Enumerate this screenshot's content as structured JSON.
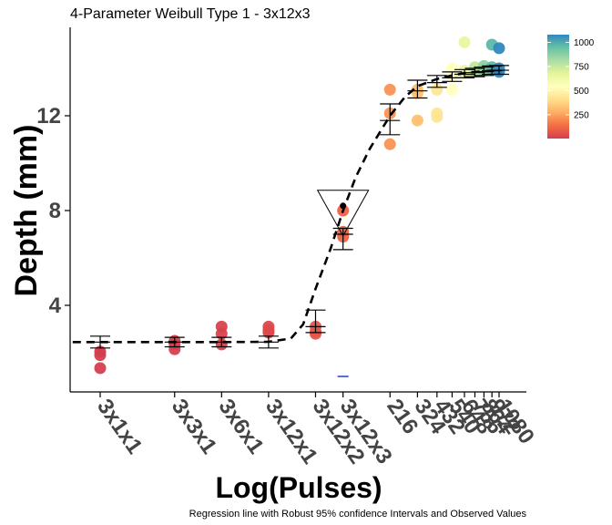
{
  "chart_data": {
    "type": "scatter",
    "title": "4-Parameter Weibull Type 1 - 3x12x3",
    "xlabel": "Log(Pulses)",
    "ylabel": "Depth (mm)",
    "caption": "Regression line with Robust 95% confidence Intervals and Observed Values",
    "x_scale": "log",
    "ylim": [
      0,
      15.8
    ],
    "yticks": [
      4,
      8,
      12
    ],
    "grid": false,
    "xtick_labels": [
      {
        "label": "3x1x1",
        "x": 3
      },
      {
        "label": "3x3x1",
        "x": 9
      },
      {
        "label": "3x6x1",
        "x": 18
      },
      {
        "label": "3x12x1",
        "x": 36
      },
      {
        "label": "3x12x2",
        "x": 72
      },
      {
        "label": "3x12x3",
        "x": 108
      },
      {
        "label": "216",
        "x": 216
      },
      {
        "label": "324",
        "x": 324
      },
      {
        "label": "432",
        "x": 432
      },
      {
        "label": "540",
        "x": 540
      },
      {
        "label": "648",
        "x": 648
      },
      {
        "label": "756",
        "x": 756
      },
      {
        "label": "864",
        "x": 864
      },
      {
        "label": "972",
        "x": 972
      },
      {
        "label": "1080",
        "x": 1080
      }
    ],
    "fit_curve": {
      "points": [
        [
          2,
          2.45
        ],
        [
          3,
          2.45
        ],
        [
          9,
          2.45
        ],
        [
          18,
          2.45
        ],
        [
          36,
          2.46
        ],
        [
          50,
          2.6
        ],
        [
          60,
          3.2
        ],
        [
          72,
          4.7
        ],
        [
          90,
          6.4
        ],
        [
          108,
          8.0
        ],
        [
          130,
          9.4
        ],
        [
          160,
          10.6
        ],
        [
          216,
          12.0
        ],
        [
          270,
          12.8
        ],
        [
          324,
          13.25
        ],
        [
          432,
          13.55
        ],
        [
          540,
          13.7
        ],
        [
          648,
          13.8
        ],
        [
          756,
          13.85
        ],
        [
          864,
          13.88
        ],
        [
          972,
          13.9
        ],
        [
          1080,
          13.92
        ]
      ],
      "style": "dashed"
    },
    "confidence_intervals": [
      {
        "x": 3,
        "center": 2.45,
        "low": 2.2,
        "high": 2.7
      },
      {
        "x": 9,
        "center": 2.45,
        "low": 2.25,
        "high": 2.65
      },
      {
        "x": 18,
        "center": 2.45,
        "low": 2.25,
        "high": 2.65
      },
      {
        "x": 36,
        "center": 2.45,
        "low": 2.2,
        "high": 2.7
      },
      {
        "x": 72,
        "center": 3.1,
        "low": 2.85,
        "high": 3.8
      },
      {
        "x": 108,
        "center": 7.0,
        "low": 6.35,
        "high": 7.25
      },
      {
        "x": 216,
        "center": 11.8,
        "low": 11.2,
        "high": 12.5
      },
      {
        "x": 324,
        "center": 13.05,
        "low": 12.75,
        "high": 13.5
      },
      {
        "x": 432,
        "center": 13.4,
        "low": 13.2,
        "high": 13.7
      },
      {
        "x": 540,
        "center": 13.6,
        "low": 13.45,
        "high": 13.85
      },
      {
        "x": 648,
        "center": 13.75,
        "low": 13.6,
        "high": 13.95
      },
      {
        "x": 756,
        "center": 13.82,
        "low": 13.65,
        "high": 14.0
      },
      {
        "x": 864,
        "center": 13.86,
        "low": 13.7,
        "high": 14.05
      },
      {
        "x": 972,
        "center": 13.9,
        "low": 13.75,
        "high": 14.1
      },
      {
        "x": 1080,
        "center": 13.92,
        "low": 13.75,
        "high": 14.12
      }
    ],
    "highlight": {
      "x": 108,
      "y": 8.2,
      "marker": "inverted-triangle"
    },
    "blue_mark": {
      "x": 108,
      "y": 1.0
    },
    "observations": [
      {
        "x": 3,
        "y": 2.05,
        "c": 3
      },
      {
        "x": 3,
        "y": 1.9,
        "c": 3
      },
      {
        "x": 3,
        "y": 1.35,
        "c": 3
      },
      {
        "x": 9,
        "y": 2.5,
        "c": 9
      },
      {
        "x": 9,
        "y": 2.35,
        "c": 9
      },
      {
        "x": 9,
        "y": 2.15,
        "c": 9
      },
      {
        "x": 18,
        "y": 3.1,
        "c": 18
      },
      {
        "x": 18,
        "y": 2.8,
        "c": 18
      },
      {
        "x": 18,
        "y": 2.35,
        "c": 18
      },
      {
        "x": 36,
        "y": 3.1,
        "c": 36
      },
      {
        "x": 36,
        "y": 2.95,
        "c": 36
      },
      {
        "x": 36,
        "y": 2.85,
        "c": 36
      },
      {
        "x": 72,
        "y": 3.1,
        "c": 72
      },
      {
        "x": 72,
        "y": 2.9,
        "c": 72
      },
      {
        "x": 72,
        "y": 2.8,
        "c": 72
      },
      {
        "x": 108,
        "y": 8.0,
        "c": 108
      },
      {
        "x": 108,
        "y": 7.1,
        "c": 108
      },
      {
        "x": 108,
        "y": 6.9,
        "c": 108
      },
      {
        "x": 216,
        "y": 13.1,
        "c": 216
      },
      {
        "x": 216,
        "y": 12.1,
        "c": 216
      },
      {
        "x": 216,
        "y": 10.8,
        "c": 216
      },
      {
        "x": 324,
        "y": 13.1,
        "c": 324
      },
      {
        "x": 324,
        "y": 12.95,
        "c": 324
      },
      {
        "x": 324,
        "y": 11.8,
        "c": 324
      },
      {
        "x": 432,
        "y": 13.1,
        "c": 432
      },
      {
        "x": 432,
        "y": 12.1,
        "c": 432
      },
      {
        "x": 432,
        "y": 11.95,
        "c": 432
      },
      {
        "x": 540,
        "y": 14.0,
        "c": 540
      },
      {
        "x": 540,
        "y": 13.7,
        "c": 540
      },
      {
        "x": 540,
        "y": 13.1,
        "c": 540
      },
      {
        "x": 648,
        "y": 15.1,
        "c": 648
      },
      {
        "x": 648,
        "y": 13.9,
        "c": 648
      },
      {
        "x": 648,
        "y": 13.8,
        "c": 648
      },
      {
        "x": 756,
        "y": 14.05,
        "c": 756
      },
      {
        "x": 756,
        "y": 13.95,
        "c": 756
      },
      {
        "x": 756,
        "y": 13.85,
        "c": 756
      },
      {
        "x": 864,
        "y": 14.1,
        "c": 864
      },
      {
        "x": 864,
        "y": 14.0,
        "c": 864
      },
      {
        "x": 864,
        "y": 13.9,
        "c": 864
      },
      {
        "x": 972,
        "y": 15.0,
        "c": 972
      },
      {
        "x": 972,
        "y": 14.05,
        "c": 972
      },
      {
        "x": 972,
        "y": 13.95,
        "c": 972
      },
      {
        "x": 1080,
        "y": 14.85,
        "c": 1080
      },
      {
        "x": 1080,
        "y": 14.0,
        "c": 1080
      },
      {
        "x": 1080,
        "y": 13.85,
        "c": 1080
      }
    ],
    "color_scale": {
      "name": "Spectral",
      "range": [
        3,
        1080
      ],
      "ticks": [
        {
          "value": 250,
          "label": "250"
        },
        {
          "value": 500,
          "label": "500"
        },
        {
          "value": 750,
          "label": "750"
        },
        {
          "value": 1000,
          "label": "1000"
        }
      ],
      "colors": [
        "#d53e4f",
        "#f46d43",
        "#fdae61",
        "#fee08b",
        "#ffffbf",
        "#e6f598",
        "#abdda4",
        "#66c2a5",
        "#3288bd"
      ]
    }
  }
}
